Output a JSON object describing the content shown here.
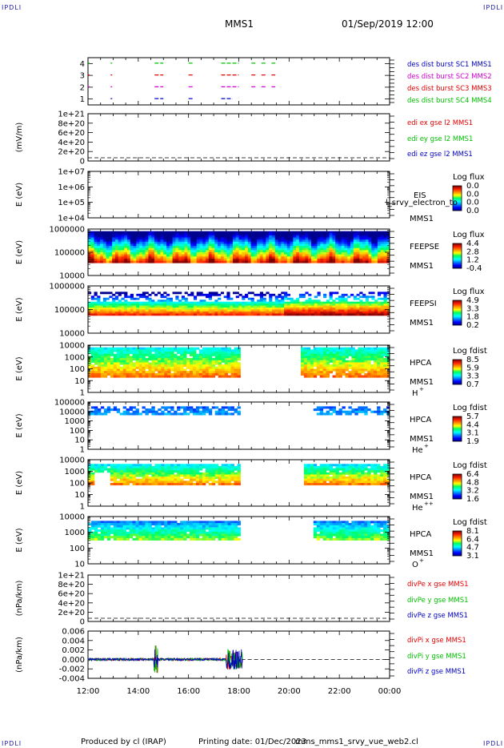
{
  "header": {
    "corner_label": "IPDLI",
    "spacecraft": "MMS1",
    "datetime": "01/Sep/2019 12:00"
  },
  "footer": {
    "produced_by": "Produced by cl (IRAP)",
    "printing_date": "Printing date: 01/Dec/2023",
    "script": "mms_mms1_srvy_vue_web2.cl"
  },
  "colors": {
    "mms1": "#0000c0",
    "mms2": "#d000d0",
    "mms3": "#e00000",
    "mms4": "#00c000",
    "axis": "#000000"
  },
  "chart_data": [
    {
      "type": "scatter",
      "panel": "burst-availability",
      "ylabel": "",
      "ylim": [
        0.5,
        4.5
      ],
      "yticks": [
        "1",
        "2",
        "3",
        "4"
      ],
      "legend": [
        {
          "text": "des dist burst SC1 MMS1",
          "color": "#0000c0"
        },
        {
          "text": "des dist burst SC2 MMS2",
          "color": "#d000d0"
        },
        {
          "text": "des dist burst SC3 MMS3",
          "color": "#e00000"
        },
        {
          "text": "des dist burst SC4 MMS4",
          "color": "#00c000"
        }
      ],
      "series": [
        {
          "sc": 4,
          "color": "#00c000",
          "segments": [
            [
              12.0,
              12.05
            ],
            [
              12.9,
              12.95
            ],
            [
              14.65,
              15.0
            ],
            [
              16.0,
              16.2
            ],
            [
              17.3,
              18.0
            ],
            [
              18.5,
              18.7
            ],
            [
              18.9,
              19.1
            ],
            [
              19.3,
              19.45
            ]
          ]
        },
        {
          "sc": 3,
          "color": "#e00000",
          "segments": [
            [
              12.0,
              12.05
            ],
            [
              12.9,
              12.95
            ],
            [
              14.65,
              15.0
            ],
            [
              16.0,
              16.2
            ],
            [
              17.3,
              18.0
            ],
            [
              18.5,
              18.7
            ],
            [
              18.9,
              19.1
            ],
            [
              19.3,
              19.45
            ]
          ]
        },
        {
          "sc": 2,
          "color": "#d000d0",
          "segments": [
            [
              12.0,
              12.05
            ],
            [
              12.9,
              12.95
            ],
            [
              14.65,
              15.0
            ],
            [
              16.0,
              16.2
            ],
            [
              17.3,
              18.0
            ],
            [
              18.5,
              18.7
            ],
            [
              18.9,
              19.1
            ],
            [
              19.3,
              19.45
            ]
          ]
        },
        {
          "sc": 1,
          "color": "#0000c0",
          "segments": [
            [
              12.9,
              12.95
            ],
            [
              14.65,
              15.0
            ],
            [
              16.0,
              16.2
            ],
            [
              17.3,
              17.75
            ]
          ]
        }
      ]
    },
    {
      "type": "line",
      "panel": "edi-e-field",
      "ylabel": "(mV/m)",
      "yticks": [
        "1e+21",
        "8e+20",
        "6e+20",
        "4e+20",
        "2e+20",
        "0"
      ],
      "ylim": [
        -1e+20,
        1.1e+21
      ],
      "legend": [
        {
          "text": "edi ex gse l2 MMS1",
          "color": "#e00000"
        },
        {
          "text": "edi ey gse l2 MMS1",
          "color": "#00c000"
        },
        {
          "text": "edi ez gse l2 MMS1",
          "color": "#0000c0"
        }
      ],
      "values": []
    },
    {
      "type": "heatmap",
      "panel": "eis",
      "ylabel": "E (eV)",
      "yticks": [
        "1e+07",
        "1e+06",
        "1e+05",
        "1e+04"
      ],
      "labels": [
        "EIS",
        "MMS1"
      ],
      "overlay_text": "l_srvy_electron_to",
      "colorbar": {
        "title": "Log flux",
        "ticks": [
          "0.0",
          "0.0",
          "0.0",
          "0.0"
        ]
      }
    },
    {
      "type": "heatmap",
      "panel": "feeps-electrons",
      "ylabel": "E (eV)",
      "yticks": [
        "1000000",
        "100000",
        "10000"
      ],
      "labels": [
        "FEEPSE",
        "MMS1"
      ],
      "colorbar": {
        "title": "Log flux",
        "ticks": [
          "4.4",
          "2.8",
          "1.2",
          "-0.4"
        ]
      }
    },
    {
      "type": "heatmap",
      "panel": "feeps-ions",
      "ylabel": "E (eV)",
      "yticks": [
        "1000000",
        "100000",
        "10000"
      ],
      "labels": [
        "FEEPSI",
        "MMS1"
      ],
      "colorbar": {
        "title": "Log flux",
        "ticks": [
          "4.9",
          "3.3",
          "1.8",
          "0.2"
        ]
      }
    },
    {
      "type": "heatmap",
      "panel": "hpca-h",
      "ylabel": "E (eV)",
      "yticks": [
        "10000",
        "1000",
        "100",
        "10",
        "1"
      ],
      "labels": [
        "HPCA",
        "MMS1",
        "H",
        "+"
      ],
      "colorbar": {
        "title": "Log fdist",
        "ticks": [
          "8.5",
          "5.9",
          "3.3",
          "0.7"
        ]
      }
    },
    {
      "type": "heatmap",
      "panel": "hpca-he",
      "ylabel": "E (eV)",
      "yticks": [
        "100000",
        "10000",
        "1000",
        "100",
        "10",
        "1"
      ],
      "labels": [
        "HPCA",
        "MMS1",
        "He",
        "+"
      ],
      "colorbar": {
        "title": "Log fdist",
        "ticks": [
          "5.7",
          "4.4",
          "3.1",
          "1.9"
        ]
      }
    },
    {
      "type": "heatmap",
      "panel": "hpca-hepp",
      "ylabel": "E (eV)",
      "yticks": [
        "10000",
        "1000",
        "100",
        "10",
        "1"
      ],
      "labels": [
        "HPCA",
        "MMS1",
        "He",
        "++"
      ],
      "colorbar": {
        "title": "Log fdist",
        "ticks": [
          "6.4",
          "4.8",
          "3.2",
          "1.6"
        ]
      }
    },
    {
      "type": "heatmap",
      "panel": "hpca-o",
      "ylabel": "E (eV)",
      "yticks": [
        "10000",
        "1000",
        "100",
        "10"
      ],
      "labels": [
        "HPCA",
        "MMS1",
        "O",
        "+"
      ],
      "colorbar": {
        "title": "Log fdist",
        "ticks": [
          "8.1",
          "6.4",
          "4.7",
          "3.1"
        ]
      }
    },
    {
      "type": "line",
      "panel": "divpe",
      "ylabel": "(nPa/km)",
      "yticks": [
        "1e+21",
        "8e+20",
        "6e+20",
        "4e+20",
        "2e+20",
        "0"
      ],
      "ylim": [
        -1e+20,
        1.1e+21
      ],
      "legend": [
        {
          "text": "divPe x gse MMS1",
          "color": "#e00000"
        },
        {
          "text": "divPe y gse MMS1",
          "color": "#00c000"
        },
        {
          "text": "divPe z gse MMS1",
          "color": "#0000c0"
        }
      ],
      "values": []
    },
    {
      "type": "line",
      "panel": "divpi",
      "ylabel": "(nPa/km)",
      "yticks": [
        "0.006",
        "0.004",
        "0.002",
        "0.000",
        "-0.002",
        "-0.004"
      ],
      "ylim": [
        -0.005,
        0.007
      ],
      "legend": [
        {
          "text": "divPi x gse MMS1",
          "color": "#e00000"
        },
        {
          "text": "divPi y gse MMS1",
          "color": "#00c000"
        },
        {
          "text": "divPi z gse MMS1",
          "color": "#0000c0"
        }
      ],
      "values": []
    }
  ],
  "time_axis": {
    "ticks": [
      "12:00",
      "14:00",
      "16:00",
      "18:00",
      "20:00",
      "22:00",
      "00:00"
    ],
    "range_hours": [
      12,
      24
    ]
  }
}
